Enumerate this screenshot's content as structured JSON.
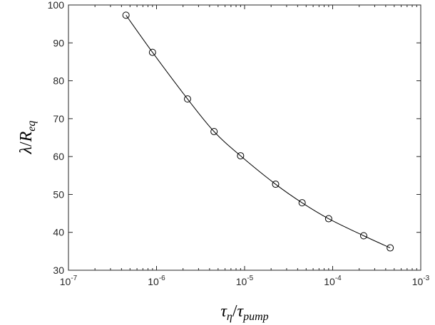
{
  "chart_data": {
    "type": "line",
    "xscale": "log",
    "xlim": [
      1e-07,
      0.001
    ],
    "ylim": [
      30,
      100
    ],
    "grid": false,
    "legend": "none",
    "xlabel": {
      "main": "τ",
      "sub": "η",
      "sep": "/",
      "main2": "τ",
      "sub2": "pump"
    },
    "ylabel": {
      "main": "λ",
      "sep": "/",
      "main2": "R",
      "sub2": "eq"
    },
    "x_ticks": [
      {
        "base": "10",
        "exp": "-7",
        "value": 1e-07
      },
      {
        "base": "10",
        "exp": "-6",
        "value": 1e-06
      },
      {
        "base": "10",
        "exp": "-5",
        "value": 1e-05
      },
      {
        "base": "10",
        "exp": "-4",
        "value": 0.0001
      },
      {
        "base": "10",
        "exp": "-3",
        "value": 0.001
      }
    ],
    "y_ticks": [
      "30",
      "40",
      "50",
      "60",
      "70",
      "80",
      "90",
      "100"
    ],
    "series": [
      {
        "marker": "circle",
        "x": [
          4.5e-07,
          9e-07,
          2.25e-06,
          4.5e-06,
          9e-06,
          2.25e-05,
          4.5e-05,
          9e-05,
          0.000225,
          0.00045
        ],
        "y": [
          97.3,
          87.5,
          75.2,
          66.6,
          60.2,
          52.7,
          47.8,
          43.6,
          39.1,
          35.9
        ]
      }
    ],
    "colors": {
      "line": "#000000",
      "axis": "#262626"
    }
  }
}
